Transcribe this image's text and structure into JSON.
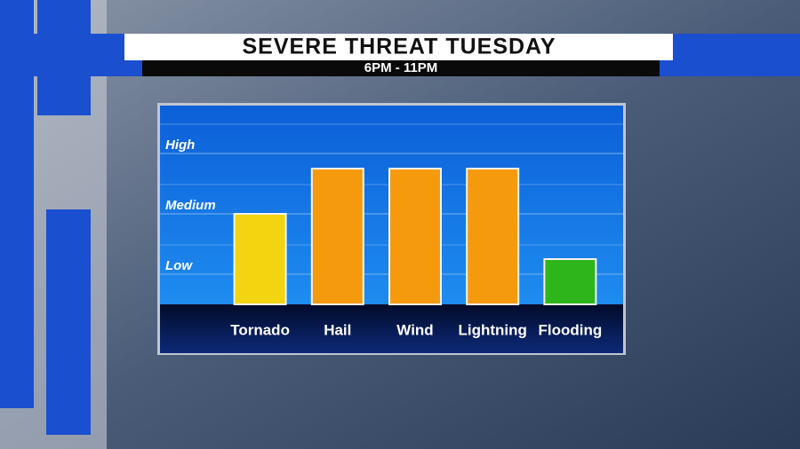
{
  "chart_data": {
    "type": "bar",
    "title": "SEVERE THREAT TUESDAY",
    "subtitle": "6PM - 11PM",
    "categories": [
      "Tornado",
      "Hail",
      "Wind",
      "Lightning",
      "Flooding"
    ],
    "values": [
      2,
      2.75,
      2.75,
      2.75,
      1.25
    ],
    "colors": [
      "#f2d410",
      "#f59a0c",
      "#f59a0c",
      "#f59a0c",
      "#2fb51c"
    ],
    "ylim": [
      0.5,
      3.75
    ],
    "yticks": [
      {
        "value": 1,
        "label": "Low"
      },
      {
        "value": 2,
        "label": "Medium"
      },
      {
        "value": 3,
        "label": "High"
      }
    ],
    "grid": true
  }
}
